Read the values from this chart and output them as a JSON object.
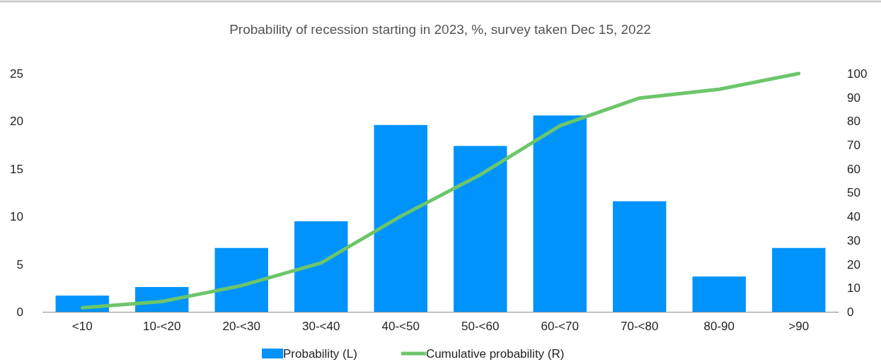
{
  "chart_data": {
    "type": "bar",
    "title": "Probability of recession starting in 2023, %, survey taken Dec 15, 2022",
    "categories": [
      "<10",
      "10-<20",
      "20-<30",
      "30-<40",
      "40-<50",
      "50-<60",
      "60-<70",
      "70-<80",
      "80-90",
      ">90"
    ],
    "series": [
      {
        "name": "Probability (L)",
        "color": "#0093fb",
        "values": [
          1.7,
          2.6,
          6.7,
          9.5,
          19.6,
          17.4,
          20.6,
          11.6,
          3.7,
          6.7
        ]
      },
      {
        "name": "Cumulative probability (R)",
        "type": "line",
        "axis": "y2",
        "color": "#6cc66a",
        "values": [
          1.7,
          4.3,
          11,
          20.5,
          40.1,
          57.5,
          78.1,
          89.7,
          93.4,
          100
        ]
      }
    ],
    "ylim": [
      0,
      25
    ],
    "yticks": [
      0,
      5,
      10,
      15,
      20,
      25
    ],
    "y2lim": [
      0,
      100
    ],
    "y2ticks": [
      0,
      10,
      20,
      30,
      40,
      50,
      60,
      70,
      80,
      90,
      100
    ],
    "grid": false,
    "legend": "bottom",
    "line_style": "solid",
    "marker": "none"
  }
}
